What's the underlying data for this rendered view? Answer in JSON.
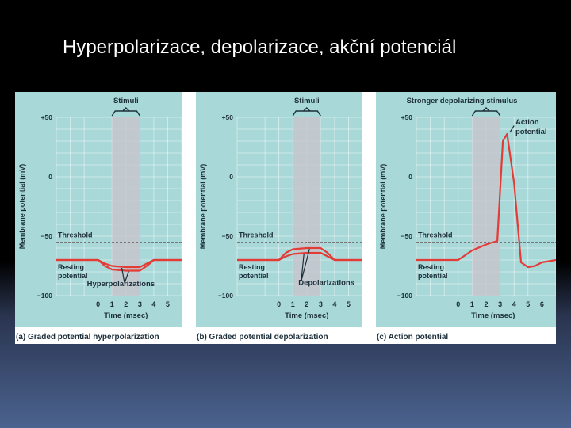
{
  "slide": {
    "title": "Hyperpolarizace, depolarizace, akční potenciál"
  },
  "colors": {
    "panel_bg": "#a9d8d8",
    "stim_band": "#c7c7cc",
    "trace": "#e33b36",
    "threshold_line": "#777777",
    "text": "#1c2f3a"
  },
  "chart_data": [
    {
      "type": "line",
      "caption": "(a) Graded potential hyperpolarization",
      "stimulus_label": "Stimuli",
      "stimulus_interval": [
        1,
        3
      ],
      "xlabel": "Time (msec)",
      "ylabel": "Membrane potential (mV)",
      "xlim": [
        -3,
        6
      ],
      "ylim": [
        -100,
        50
      ],
      "x_ticks": [
        "0",
        "1",
        "2",
        "3",
        "4",
        "5"
      ],
      "y_ticks": [
        "+50",
        "0",
        "−50",
        "−100"
      ],
      "threshold": {
        "label": "Threshold",
        "value": -55
      },
      "resting_label": [
        "Resting",
        "potential"
      ],
      "annotation": "Hyperpolarizations",
      "series": [
        {
          "x": [
            -3,
            0,
            0.5,
            1,
            2,
            3,
            3.5,
            4,
            6
          ],
          "y": [
            -70,
            -70,
            -73,
            -75,
            -76,
            -76,
            -73,
            -70,
            -70
          ]
        },
        {
          "x": [
            -3,
            0,
            0.5,
            1,
            2,
            3,
            3.5,
            4,
            6
          ],
          "y": [
            -70,
            -70,
            -75,
            -78,
            -79,
            -79,
            -75,
            -70,
            -70
          ]
        }
      ]
    },
    {
      "type": "line",
      "caption": "(b) Graded potential depolarization",
      "stimulus_label": "Stimuli",
      "stimulus_interval": [
        1,
        3
      ],
      "xlabel": "Time (msec)",
      "ylabel": "Membrane potential (mV)",
      "xlim": [
        -3,
        6
      ],
      "ylim": [
        -100,
        50
      ],
      "x_ticks": [
        "0",
        "1",
        "2",
        "3",
        "4",
        "5"
      ],
      "y_ticks": [
        "+50",
        "0",
        "−50",
        "−100"
      ],
      "threshold": {
        "label": "Threshold",
        "value": -55
      },
      "resting_label": [
        "Resting",
        "potential"
      ],
      "annotation": "Depolarizations",
      "series": [
        {
          "x": [
            -3,
            0,
            0.5,
            1,
            2,
            3,
            3.5,
            4,
            6
          ],
          "y": [
            -70,
            -70,
            -67,
            -65,
            -64,
            -64,
            -67,
            -70,
            -70
          ]
        },
        {
          "x": [
            -3,
            0,
            0.5,
            1,
            2,
            3,
            3.5,
            4,
            6
          ],
          "y": [
            -70,
            -70,
            -64,
            -61,
            -60,
            -60,
            -64,
            -70,
            -70
          ]
        }
      ]
    },
    {
      "type": "line",
      "caption": "(c) Action potential",
      "stimulus_label": "Stronger depolarizing stimulus",
      "stimulus_interval": [
        1,
        3
      ],
      "xlabel": "Time (msec)",
      "ylabel": "Membrane potential (mV)",
      "xlim": [
        -3,
        7
      ],
      "ylim": [
        -100,
        50
      ],
      "x_ticks": [
        "0",
        "1",
        "2",
        "3",
        "4",
        "5",
        "6"
      ],
      "y_ticks": [
        "+50",
        "0",
        "−50",
        "−100"
      ],
      "threshold": {
        "label": "Threshold",
        "value": -55
      },
      "resting_label": [
        "Resting",
        "potential"
      ],
      "annotation": "Action potential",
      "series": [
        {
          "x": [
            -3,
            0,
            1,
            2,
            2.8,
            3.2,
            3.5,
            4,
            4.5,
            5,
            5.5,
            6,
            7
          ],
          "y": [
            -70,
            -70,
            -62,
            -57,
            -54,
            30,
            36,
            -5,
            -72,
            -76,
            -75,
            -72,
            -70
          ]
        }
      ]
    }
  ]
}
